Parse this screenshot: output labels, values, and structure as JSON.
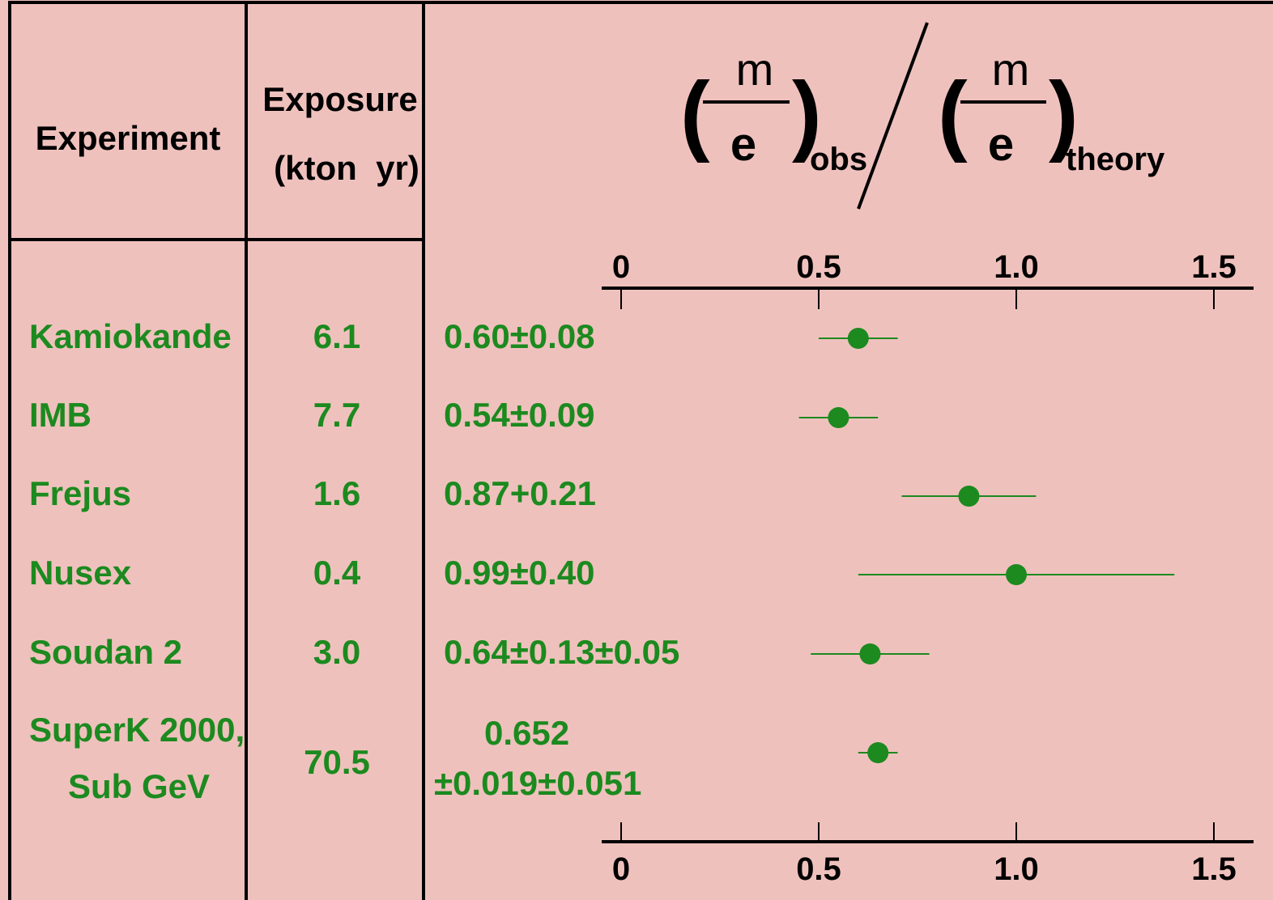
{
  "headers": {
    "experiment": "Experiment",
    "exposure_line1": "Exposure",
    "exposure_line2": "(kton  yr)"
  },
  "formula": {
    "numerator": "m",
    "denominator": "e",
    "obs_subscript": "obs",
    "theory_subscript": "theory"
  },
  "rows": [
    {
      "experiment": [
        "Kamiokande"
      ],
      "exposure": "6.1",
      "result": [
        "0.60±0.08"
      ]
    },
    {
      "experiment": [
        "IMB"
      ],
      "exposure": "7.7",
      "result": [
        "0.54±0.09"
      ]
    },
    {
      "experiment": [
        "Frejus"
      ],
      "exposure": "1.6",
      "result": [
        "0.87+0.21"
      ]
    },
    {
      "experiment": [
        "Nusex"
      ],
      "exposure": "0.4",
      "result": [
        "0.99±0.40"
      ]
    },
    {
      "experiment": [
        "Soudan 2"
      ],
      "exposure": "3.0",
      "result": [
        "0.64±0.13±0.05"
      ]
    },
    {
      "experiment": [
        "SuperK  2000,",
        "Sub  GeV"
      ],
      "exposure": "70.5",
      "result": [
        "0.652",
        "±0.019±0.051"
      ]
    }
  ],
  "chart_data": {
    "type": "scatter",
    "xlim": [
      0,
      1.5
    ],
    "xticks": [
      "0",
      "0.5",
      "1.0",
      "1.5"
    ],
    "xtick_values": [
      0,
      0.5,
      1.0,
      1.5
    ],
    "points": [
      {
        "label": "Kamiokande",
        "x": 0.6,
        "err": 0.1
      },
      {
        "label": "IMB",
        "x": 0.55,
        "err": 0.1
      },
      {
        "label": "Frejus",
        "x": 0.88,
        "err": 0.17
      },
      {
        "label": "Nusex",
        "x": 1.0,
        "err": 0.4
      },
      {
        "label": "Soudan 2",
        "x": 0.63,
        "err": 0.15
      },
      {
        "label": "SuperK 2000, Sub GeV",
        "x": 0.65,
        "err": 0.05
      }
    ]
  },
  "colors": {
    "background": "#efc1bd",
    "data": "#1c8a1f",
    "lines": "#000000"
  }
}
